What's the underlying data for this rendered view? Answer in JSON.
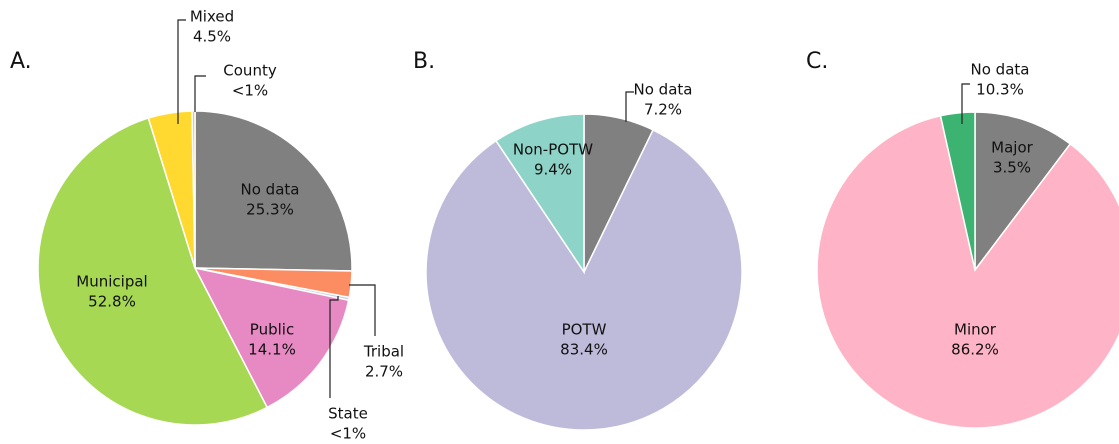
{
  "chart_data": [
    {
      "type": "pie",
      "label": "A.",
      "categories": [
        "No data",
        "Tribal",
        "State",
        "Public",
        "Municipal",
        "Mixed",
        "County"
      ],
      "values": [
        25.3,
        2.7,
        0.3,
        14.1,
        52.8,
        4.5,
        0.3
      ],
      "value_labels": [
        "25.3%",
        "2.7%",
        "<1%",
        "14.1%",
        "52.8%",
        "4.5%",
        "<1%"
      ],
      "colors": [
        "#808080",
        "#fc8d62",
        "#c6d4ee",
        "#e78ac3",
        "#a6d854",
        "#ffd92f",
        "#e5c494"
      ]
    },
    {
      "type": "pie",
      "label": "B.",
      "categories": [
        "No data",
        "POTW",
        "Non-POTW"
      ],
      "values": [
        7.2,
        83.4,
        9.4
      ],
      "value_labels": [
        "7.2%",
        "83.4%",
        "9.4%"
      ],
      "colors": [
        "#808080",
        "#bebada",
        "#8dd3c7"
      ]
    },
    {
      "type": "pie",
      "label": "C.",
      "categories": [
        "No data",
        "Minor",
        "Major"
      ],
      "values": [
        10.3,
        86.2,
        3.5
      ],
      "value_labels": [
        "10.3%",
        "86.2%",
        "3.5%"
      ],
      "colors": [
        "#808080",
        "#ffb3c6",
        "#3cb371"
      ]
    }
  ]
}
